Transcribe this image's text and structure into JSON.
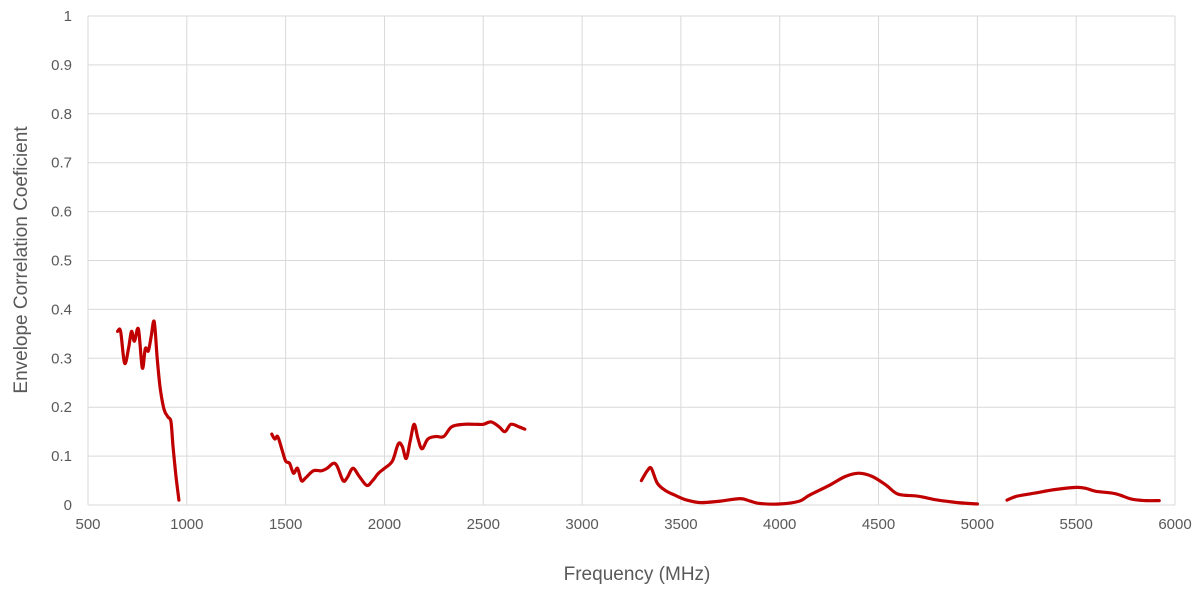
{
  "chart_data": {
    "type": "line",
    "xlabel": "Frequency (MHz)",
    "ylabel": "Envelope Correlation Coeficient",
    "xlim": [
      500,
      6000
    ],
    "ylim": [
      0,
      1
    ],
    "x_ticks": [
      500,
      1000,
      1500,
      2000,
      2500,
      3000,
      3500,
      4000,
      4500,
      5000,
      5500,
      6000
    ],
    "y_ticks": [
      "0",
      "0.1",
      "0.2",
      "0.3",
      "0.4",
      "0.5",
      "0.6",
      "0.7",
      "0.8",
      "0.9",
      "1"
    ],
    "grid": true,
    "color": "#c00000",
    "series": [
      {
        "segments": [
          [
            [
              650,
              0.355
            ],
            [
              665,
              0.355
            ],
            [
              685,
              0.29
            ],
            [
              705,
              0.32
            ],
            [
              720,
              0.355
            ],
            [
              735,
              0.335
            ],
            [
              755,
              0.36
            ],
            [
              775,
              0.28
            ],
            [
              790,
              0.32
            ],
            [
              805,
              0.315
            ],
            [
              820,
              0.345
            ],
            [
              835,
              0.375
            ],
            [
              850,
              0.3
            ],
            [
              865,
              0.24
            ],
            [
              885,
              0.195
            ],
            [
              905,
              0.18
            ],
            [
              920,
              0.17
            ],
            [
              930,
              0.12
            ],
            [
              945,
              0.06
            ],
            [
              960,
              0.01
            ]
          ],
          [
            [
              1430,
              0.145
            ],
            [
              1445,
              0.135
            ],
            [
              1460,
              0.14
            ],
            [
              1480,
              0.115
            ],
            [
              1500,
              0.09
            ],
            [
              1520,
              0.085
            ],
            [
              1540,
              0.065
            ],
            [
              1560,
              0.075
            ],
            [
              1580,
              0.05
            ],
            [
              1600,
              0.055
            ],
            [
              1640,
              0.07
            ],
            [
              1680,
              0.07
            ],
            [
              1710,
              0.075
            ],
            [
              1740,
              0.085
            ],
            [
              1760,
              0.08
            ],
            [
              1790,
              0.05
            ],
            [
              1810,
              0.055
            ],
            [
              1840,
              0.075
            ],
            [
              1870,
              0.06
            ],
            [
              1910,
              0.04
            ],
            [
              1940,
              0.05
            ],
            [
              1970,
              0.065
            ],
            [
              2000,
              0.075
            ],
            [
              2040,
              0.09
            ],
            [
              2070,
              0.125
            ],
            [
              2090,
              0.12
            ],
            [
              2110,
              0.095
            ],
            [
              2130,
              0.13
            ],
            [
              2150,
              0.165
            ],
            [
              2170,
              0.135
            ],
            [
              2190,
              0.115
            ],
            [
              2220,
              0.135
            ],
            [
              2260,
              0.14
            ],
            [
              2300,
              0.14
            ],
            [
              2340,
              0.16
            ],
            [
              2400,
              0.165
            ],
            [
              2460,
              0.165
            ],
            [
              2500,
              0.165
            ],
            [
              2540,
              0.17
            ],
            [
              2580,
              0.16
            ],
            [
              2610,
              0.15
            ],
            [
              2640,
              0.165
            ],
            [
              2680,
              0.16
            ],
            [
              2710,
              0.155
            ]
          ],
          [
            [
              3300,
              0.05
            ],
            [
              3330,
              0.07
            ],
            [
              3350,
              0.075
            ],
            [
              3380,
              0.045
            ],
            [
              3420,
              0.03
            ],
            [
              3470,
              0.02
            ],
            [
              3530,
              0.01
            ],
            [
              3600,
              0.005
            ],
            [
              3700,
              0.008
            ],
            [
              3800,
              0.013
            ],
            [
              3850,
              0.008
            ],
            [
              3900,
              0.003
            ],
            [
              4000,
              0.002
            ],
            [
              4100,
              0.008
            ],
            [
              4150,
              0.02
            ],
            [
              4250,
              0.04
            ],
            [
              4330,
              0.058
            ],
            [
              4400,
              0.065
            ],
            [
              4470,
              0.058
            ],
            [
              4540,
              0.04
            ],
            [
              4600,
              0.022
            ],
            [
              4700,
              0.018
            ],
            [
              4800,
              0.01
            ],
            [
              4900,
              0.005
            ],
            [
              5000,
              0.002
            ]
          ],
          [
            [
              5150,
              0.01
            ],
            [
              5200,
              0.018
            ],
            [
              5300,
              0.025
            ],
            [
              5400,
              0.032
            ],
            [
              5500,
              0.036
            ],
            [
              5550,
              0.034
            ],
            [
              5600,
              0.028
            ],
            [
              5700,
              0.023
            ],
            [
              5780,
              0.012
            ],
            [
              5850,
              0.009
            ],
            [
              5920,
              0.009
            ]
          ]
        ]
      }
    ]
  }
}
